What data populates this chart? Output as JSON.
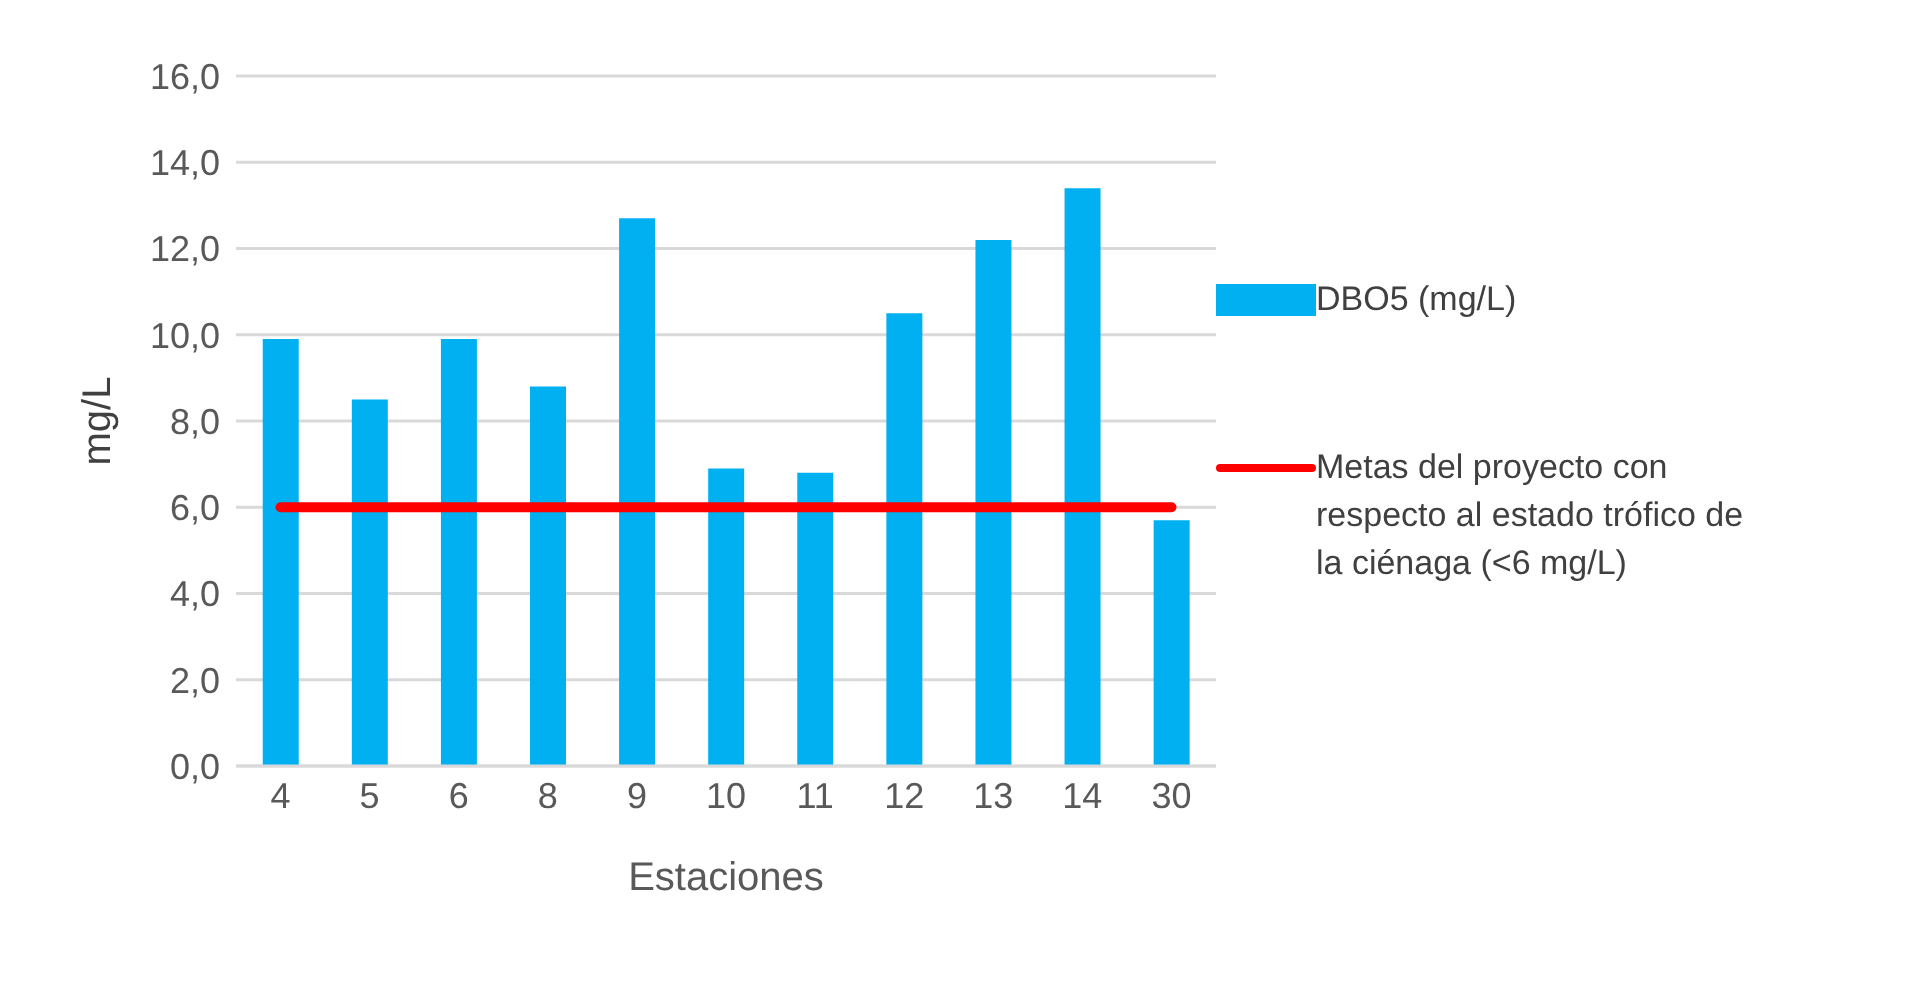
{
  "chart_data": {
    "type": "bar",
    "xlabel": "Estaciones",
    "ylabel": "mg/L",
    "categories": [
      "4",
      "5",
      "6",
      "8",
      "9",
      "10",
      "11",
      "12",
      "13",
      "14",
      "30"
    ],
    "series": [
      {
        "name": "DBO5 (mg/L)",
        "color": "#00b0f0",
        "values": [
          9.9,
          8.5,
          9.9,
          8.8,
          12.7,
          6.9,
          6.8,
          10.5,
          12.2,
          13.4,
          5.7
        ]
      },
      {
        "name": "Metas del proyecto con respecto al estado trófico de la ciénaga (<6 mg/L)",
        "type": "line",
        "color": "#ff0000",
        "values": [
          6,
          6,
          6,
          6,
          6,
          6,
          6,
          6,
          6,
          6,
          6
        ]
      }
    ],
    "ylim": [
      0,
      16
    ],
    "yticks": [
      {
        "value": 0,
        "label": "0,0"
      },
      {
        "value": 2,
        "label": "2,0"
      },
      {
        "value": 4,
        "label": "4,0"
      },
      {
        "value": 6,
        "label": "6,0"
      },
      {
        "value": 8,
        "label": "8,0"
      },
      {
        "value": 10,
        "label": "10,0"
      },
      {
        "value": 12,
        "label": "12,0"
      },
      {
        "value": 14,
        "label": "14,0"
      },
      {
        "value": 16,
        "label": "16,0"
      }
    ],
    "grid": "y",
    "legend": "right",
    "marker": "none",
    "line_style": "solid"
  }
}
